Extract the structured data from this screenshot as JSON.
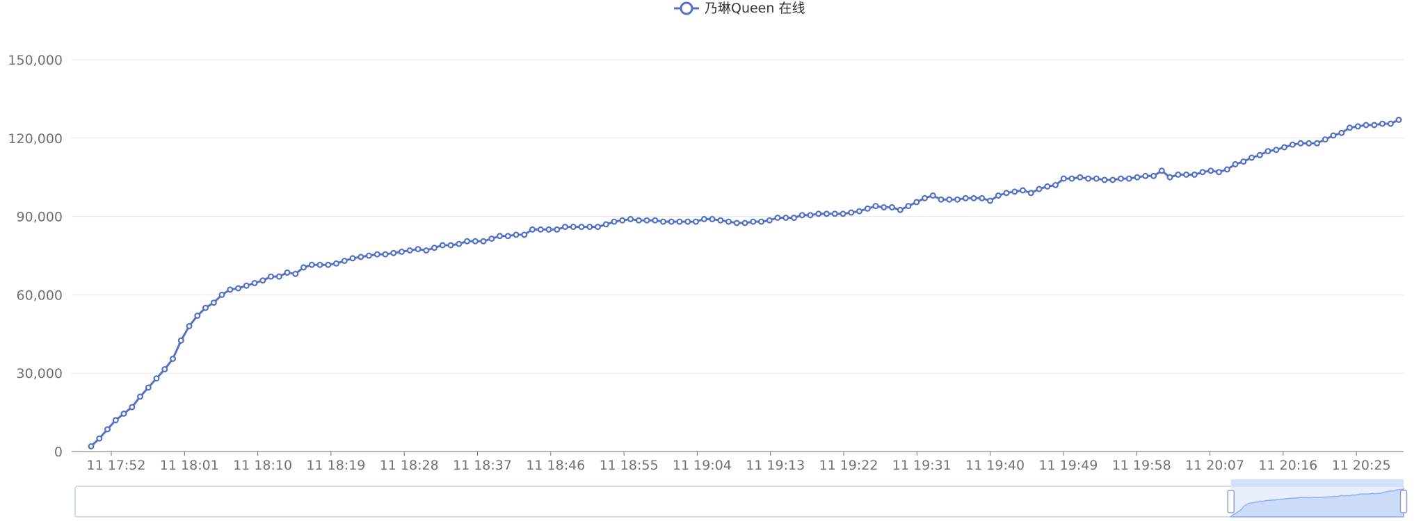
{
  "colors": {
    "series": "#5470c6",
    "grid": "#e0e6f1",
    "axis": "#6e7079",
    "zoom_fill": "#d6e2fb",
    "zoom_border": "#d2dbee"
  },
  "chart_data": {
    "type": "line",
    "legend": {
      "position": "top-center",
      "entries": [
        "乃琳Queen 在线"
      ]
    },
    "grid": true,
    "ylim": [
      0,
      150000
    ],
    "y_ticks": [
      "0",
      "30,000",
      "60,000",
      "90,000",
      "120,000",
      "150,000"
    ],
    "x_ticks": [
      "11 17:52",
      "11 18:01",
      "11 18:10",
      "11 18:19",
      "11 18:28",
      "11 18:37",
      "11 18:46",
      "11 18:55",
      "11 19:04",
      "11 19:13",
      "11 19:22",
      "11 19:31",
      "11 19:40",
      "11 19:49",
      "11 19:58",
      "11 20:07",
      "11 20:16",
      "11 20:25"
    ],
    "data_zoom": {
      "start_percent": 87,
      "end_percent": 100
    },
    "series": [
      {
        "name": "乃琳Queen 在线",
        "values": [
          2000,
          5000,
          8500,
          12000,
          14500,
          17000,
          21000,
          24500,
          28000,
          31500,
          35500,
          42500,
          48000,
          52000,
          55000,
          57000,
          60000,
          62000,
          62500,
          63500,
          64500,
          65500,
          67000,
          67000,
          68500,
          68000,
          70500,
          71500,
          71500,
          71500,
          72000,
          73000,
          74000,
          74500,
          75000,
          75500,
          75500,
          76000,
          76500,
          77000,
          77500,
          77000,
          78000,
          79000,
          79000,
          79500,
          80500,
          80500,
          80500,
          81500,
          82500,
          82500,
          83000,
          83000,
          85000,
          85000,
          85000,
          85000,
          86000,
          86000,
          86000,
          86000,
          86000,
          87000,
          88000,
          88500,
          89000,
          88500,
          88500,
          88500,
          88000,
          88000,
          88000,
          88000,
          88000,
          89000,
          89000,
          88500,
          88000,
          87500,
          87500,
          88000,
          88000,
          88500,
          89500,
          89500,
          89500,
          90500,
          90500,
          91000,
          91000,
          91000,
          91000,
          91500,
          92000,
          93000,
          94000,
          93500,
          93500,
          92500,
          94000,
          95500,
          97000,
          98000,
          96500,
          96500,
          96500,
          97000,
          97000,
          97000,
          96000,
          98000,
          99000,
          99500,
          100000,
          99000,
          100500,
          101500,
          102000,
          104500,
          104500,
          105000,
          104500,
          104500,
          104000,
          104000,
          104500,
          104500,
          105000,
          105500,
          105500,
          107500,
          105000,
          106000,
          106000,
          106000,
          107000,
          107500,
          107000,
          108000,
          110000,
          111000,
          112500,
          113500,
          115000,
          115500,
          116500,
          117500,
          118000,
          118000,
          118000,
          119500,
          121000,
          122000,
          124000,
          124500,
          125000,
          125000,
          125500,
          125500,
          127000
        ]
      }
    ]
  }
}
